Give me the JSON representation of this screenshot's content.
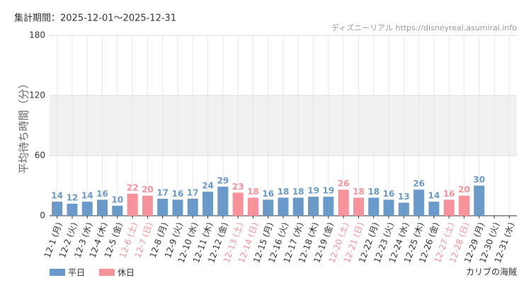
{
  "chart_data": {
    "type": "bar",
    "title": "集計期間：2025-12-01～2025-12-31",
    "source": "ディズニーリアル https://disneyreal.asumirai.info",
    "attraction": "カリブの海賊",
    "y_label": "平均待ち時間（分）",
    "categories": [
      "12-1 (月)",
      "12-2 (火)",
      "12-3 (水)",
      "12-4 (木)",
      "12-5 (金)",
      "12-6 (土)",
      "12-7 (日)",
      "12-8 (月)",
      "12-9 (火)",
      "12-10 (水)",
      "12-11 (木)",
      "12-12 (金)",
      "12-13 (土)",
      "12-14 (日)",
      "12-15 (月)",
      "12-16 (火)",
      "12-17 (水)",
      "12-18 (木)",
      "12-19 (金)",
      "12-20 (土)",
      "12-21 (日)",
      "12-22 (月)",
      "12-23 (火)",
      "12-24 (水)",
      "12-25 (木)",
      "12-26 (金)",
      "12-27 (土)",
      "12-28 (日)",
      "12-29 (月)",
      "12-30 (火)",
      "12-31 (水)"
    ],
    "series": [
      {
        "name": "平日",
        "color": "#6a9ac9",
        "values": [
          14,
          12,
          14,
          16,
          10,
          null,
          null,
          17,
          16,
          17,
          24,
          29,
          null,
          null,
          16,
          18,
          18,
          19,
          19,
          null,
          null,
          18,
          16,
          13,
          26,
          14,
          null,
          null,
          30,
          null,
          null
        ]
      },
      {
        "name": "休日",
        "color": "#f7919a",
        "values": [
          null,
          null,
          null,
          null,
          null,
          22,
          20,
          null,
          null,
          null,
          null,
          null,
          23,
          18,
          null,
          null,
          null,
          null,
          null,
          26,
          18,
          null,
          null,
          null,
          null,
          null,
          16,
          20,
          null,
          null,
          null
        ]
      }
    ],
    "ylim": [
      0,
      180
    ],
    "yticks": [
      0,
      60,
      120,
      180
    ],
    "shaded_range": [
      60,
      120
    ],
    "grid": true
  }
}
